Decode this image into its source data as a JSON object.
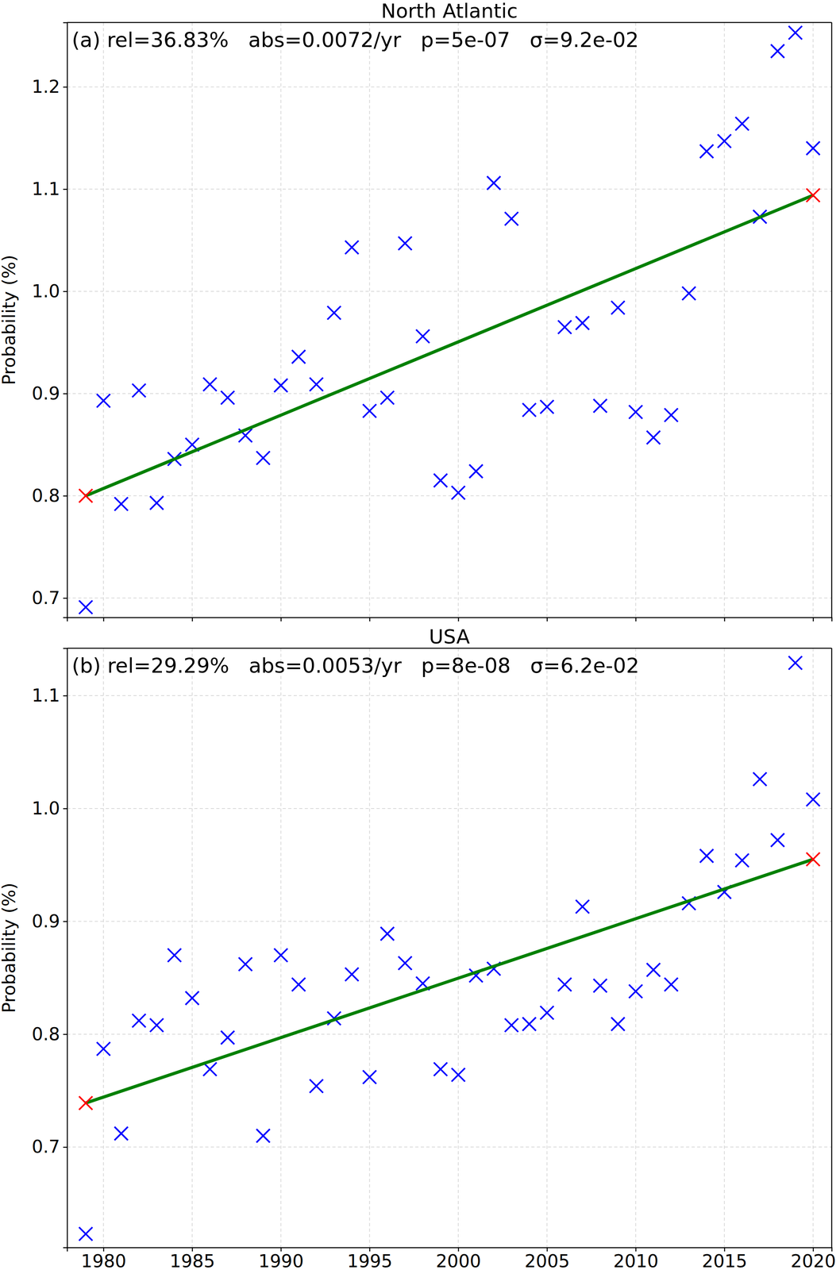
{
  "chart_data": [
    {
      "type": "scatter",
      "title": "North Atlantic",
      "annotation": "(a) rel=36.83%   abs=0.0072/yr   p=5e-07   σ=9.2e-02",
      "y_label": "Probability (%)",
      "x": [
        1979,
        1980,
        1981,
        1982,
        1983,
        1984,
        1985,
        1986,
        1987,
        1988,
        1989,
        1990,
        1991,
        1992,
        1993,
        1994,
        1995,
        1996,
        1997,
        1998,
        1999,
        2000,
        2001,
        2002,
        2003,
        2004,
        2005,
        2006,
        2007,
        2008,
        2009,
        2010,
        2011,
        2012,
        2013,
        2014,
        2015,
        2016,
        2017,
        2018,
        2019,
        2020
      ],
      "series": [
        {
          "type": "scatter",
          "marker": "x",
          "color": "#0000ff",
          "values": [
            0.691,
            0.893,
            0.792,
            0.903,
            0.793,
            0.836,
            0.85,
            0.909,
            0.896,
            0.859,
            0.837,
            0.908,
            0.936,
            0.909,
            0.979,
            1.043,
            0.883,
            0.896,
            1.047,
            0.956,
            0.815,
            0.803,
            0.824,
            1.106,
            1.071,
            0.884,
            0.887,
            0.965,
            0.969,
            0.888,
            0.984,
            0.882,
            0.857,
            0.879,
            0.998,
            1.137,
            1.147,
            1.164,
            1.073,
            1.235,
            1.253,
            1.14
          ]
        },
        {
          "type": "line",
          "color": "#008000",
          "line_style": "solid",
          "x": [
            1979,
            2020
          ],
          "values": [
            0.8,
            1.094
          ]
        },
        {
          "type": "scatter",
          "marker": "x",
          "color": "#ff0000",
          "x": [
            1979,
            2020
          ],
          "values": [
            0.8,
            1.094
          ]
        }
      ],
      "xlim": [
        1977.95,
        2021.05
      ],
      "xticks": [
        1980,
        1985,
        1990,
        1995,
        2000,
        2005,
        2010,
        2015,
        2020
      ],
      "ylim": [
        0.681,
        1.263
      ],
      "yticks": [
        0.7,
        0.8,
        0.9,
        {
          "value": 1,
          "label": "1.0"
        },
        1.1,
        1.2
      ],
      "grid": true,
      "tick_labels": "y"
    },
    {
      "type": "scatter",
      "title": "USA",
      "annotation": "(b) rel=29.29%   abs=0.0053/yr   p=8e-08   σ=6.2e-02",
      "y_label": "Probability (%)",
      "x": [
        1979,
        1980,
        1981,
        1982,
        1983,
        1984,
        1985,
        1986,
        1987,
        1988,
        1989,
        1990,
        1991,
        1992,
        1993,
        1994,
        1995,
        1996,
        1997,
        1998,
        1999,
        2000,
        2001,
        2002,
        2003,
        2004,
        2005,
        2006,
        2007,
        2008,
        2009,
        2010,
        2011,
        2012,
        2013,
        2014,
        2015,
        2016,
        2017,
        2018,
        2019,
        2020
      ],
      "series": [
        {
          "type": "scatter",
          "marker": "x",
          "color": "#0000ff",
          "values": [
            0.623,
            0.787,
            0.712,
            0.812,
            0.808,
            0.87,
            0.832,
            0.769,
            0.797,
            0.862,
            0.71,
            0.87,
            0.844,
            0.754,
            0.814,
            0.853,
            0.762,
            0.889,
            0.863,
            0.845,
            0.769,
            0.764,
            0.852,
            0.858,
            0.808,
            0.809,
            0.819,
            0.844,
            0.913,
            0.843,
            0.809,
            0.838,
            0.857,
            0.844,
            0.916,
            0.958,
            0.926,
            0.954,
            1.026,
            0.972,
            1.129,
            1.008
          ]
        },
        {
          "type": "line",
          "color": "#008000",
          "line_style": "solid",
          "x": [
            1979,
            2020
          ],
          "values": [
            0.739,
            0.955
          ]
        },
        {
          "type": "scatter",
          "marker": "x",
          "color": "#ff0000",
          "x": [
            1979,
            2020
          ],
          "values": [
            0.739,
            0.955
          ]
        }
      ],
      "xlim": [
        1977.95,
        2021.05
      ],
      "xticks": [
        1980,
        1985,
        1990,
        1995,
        2000,
        2005,
        2010,
        2015,
        2020
      ],
      "ylim": [
        0.611,
        1.142
      ],
      "yticks": [
        0.7,
        0.8,
        0.9,
        {
          "value": 1,
          "label": "1.0"
        },
        1.1
      ],
      "grid": true,
      "tick_labels": true
    }
  ]
}
